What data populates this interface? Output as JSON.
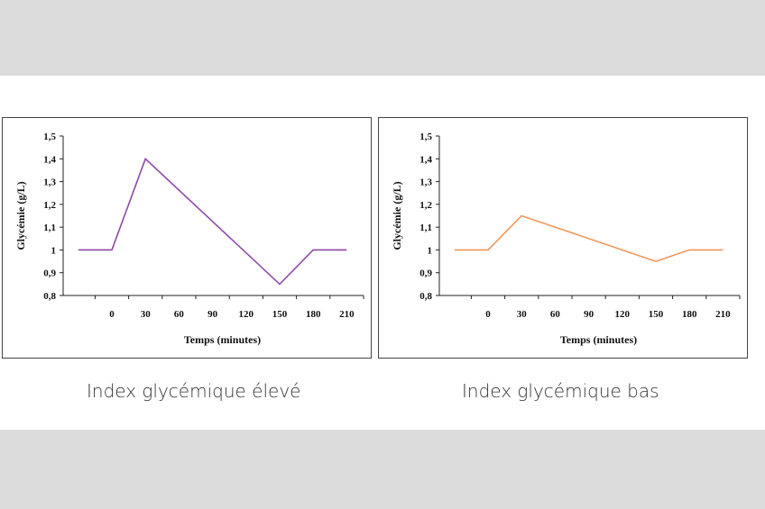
{
  "chart_data": [
    {
      "type": "line",
      "title": "",
      "xlabel": "Temps (minutes)",
      "ylabel": "Glycémie (g/L)",
      "x_ticks": [
        "0",
        "30",
        "60",
        "90",
        "120",
        "150",
        "180",
        "210"
      ],
      "y_ticks": [
        "0,8",
        "0,9",
        "1",
        "1,1",
        "1,2",
        "1,3",
        "1,4",
        "1,5"
      ],
      "ylim": [
        0.8,
        1.5
      ],
      "x": [
        -30,
        0,
        30,
        150,
        180,
        210
      ],
      "values": [
        1.0,
        1.0,
        1.4,
        0.85,
        1.0,
        1.0
      ],
      "line_color": "#8e4aa8",
      "caption": "Index glycémique élevé"
    },
    {
      "type": "line",
      "title": "",
      "xlabel": "Temps (minutes)",
      "ylabel": "Glycémie (g/L)",
      "x_ticks": [
        "0",
        "30",
        "60",
        "90",
        "120",
        "150",
        "180",
        "210"
      ],
      "y_ticks": [
        "0,8",
        "0,9",
        "1",
        "1,1",
        "1,2",
        "1,3",
        "1,4",
        "1,5"
      ],
      "ylim": [
        0.8,
        1.5
      ],
      "x": [
        -30,
        0,
        30,
        150,
        180,
        210
      ],
      "values": [
        1.0,
        1.0,
        1.15,
        0.95,
        1.0,
        1.0
      ],
      "line_color": "#f0975a",
      "caption": "Index glycémique bas"
    }
  ]
}
